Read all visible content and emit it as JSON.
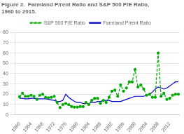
{
  "chart_data": {
    "type": "line",
    "title": [
      "Figure 2.  Farmland P/rent Ratio and S&P 500 P/E Ratio,",
      "1960 to 2015."
    ],
    "x": [
      1960,
      1961,
      1962,
      1963,
      1964,
      1965,
      1966,
      1967,
      1968,
      1969,
      1970,
      1971,
      1972,
      1973,
      1974,
      1975,
      1976,
      1977,
      1978,
      1979,
      1980,
      1981,
      1982,
      1983,
      1984,
      1985,
      1986,
      1987,
      1988,
      1989,
      1990,
      1991,
      1992,
      1993,
      1994,
      1995,
      1996,
      1997,
      1998,
      1999,
      2000,
      2001,
      2002,
      2003,
      2004,
      2005,
      2006,
      2007,
      2008,
      2009,
      2010,
      2011,
      2012,
      2013,
      2014,
      2015
    ],
    "series": [
      {
        "name": "S&P 500 P/E Ratio",
        "color": "#00aa00",
        "line_style": "dashed",
        "marker": "circle",
        "values": [
          17.5,
          21,
          18,
          18,
          19,
          18,
          15,
          19,
          20,
          17,
          16.5,
          17,
          18,
          12,
          7,
          10,
          11,
          10,
          8,
          7.5,
          7.5,
          8,
          8,
          12,
          10,
          14,
          16,
          16,
          11,
          14,
          12,
          17,
          23,
          24,
          18,
          29,
          23,
          26,
          32,
          32,
          44,
          27,
          29,
          25,
          19,
          20,
          17,
          17,
          60,
          18,
          21,
          15,
          16,
          19,
          20,
          20
        ]
      },
      {
        "name": "Farmland P/rent Ratio",
        "color": "#0000cc",
        "line_style": "solid",
        "values": [
          16,
          16,
          15.5,
          15.5,
          16,
          16,
          15.5,
          15.5,
          15.5,
          15.5,
          15,
          14.5,
          14,
          13,
          13,
          14,
          20,
          17,
          15,
          13,
          12,
          12,
          11,
          11,
          11,
          12,
          12,
          13,
          13,
          14,
          14,
          14,
          13,
          13,
          13,
          13,
          14,
          15,
          16,
          17,
          18,
          18,
          18,
          18,
          19,
          20,
          22,
          25,
          27,
          26,
          25,
          26,
          28,
          30,
          32,
          32
        ]
      }
    ],
    "xlim": [
      1958.5,
      2015.5
    ],
    "xticks": [
      1960,
      1964,
      1968,
      1972,
      1976,
      1980,
      1984,
      1988,
      1992,
      1996,
      2000,
      2004,
      2008,
      2012
    ],
    "ylim": [
      0,
      80
    ],
    "yticks": [
      0,
      10,
      20,
      30,
      40,
      50,
      60,
      70,
      80
    ],
    "grid": "y",
    "legend": "top"
  }
}
